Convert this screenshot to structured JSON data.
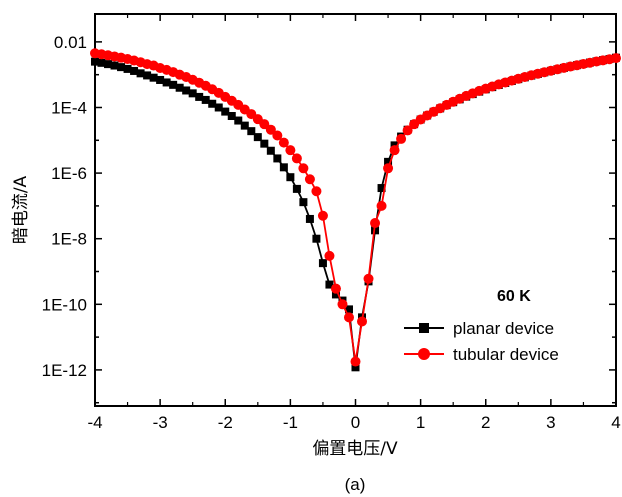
{
  "chart_data": {
    "type": "line",
    "xlabel": "偏置电压/V",
    "ylabel": "暗电流/A",
    "caption": "(a)",
    "annotation": "60 K",
    "xlim": [
      -4,
      4
    ],
    "ylim_log10": [
      -13.1,
      -1.15
    ],
    "y_scale": "log",
    "grid": false,
    "legend_position": "bottom-right",
    "x_ticks": [
      -4,
      -3,
      -2,
      -1,
      0,
      1,
      2,
      3,
      4
    ],
    "y_ticks": [
      {
        "value": 0.01,
        "label": "0.01"
      },
      {
        "value": 0.0001,
        "label": "1E-4"
      },
      {
        "value": 1e-06,
        "label": "1E-6"
      },
      {
        "value": 1e-08,
        "label": "1E-8"
      },
      {
        "value": 1e-10,
        "label": "1E-10"
      },
      {
        "value": 1e-12,
        "label": "1E-12"
      }
    ],
    "series": [
      {
        "name": "planar device",
        "color": "#000000",
        "marker": "square",
        "x": [
          -4.0,
          -3.9,
          -3.8,
          -3.7,
          -3.6,
          -3.5,
          -3.4,
          -3.3,
          -3.2,
          -3.1,
          -3.0,
          -2.9,
          -2.8,
          -2.7,
          -2.6,
          -2.5,
          -2.4,
          -2.3,
          -2.2,
          -2.1,
          -2.0,
          -1.9,
          -1.8,
          -1.7,
          -1.6,
          -1.5,
          -1.4,
          -1.3,
          -1.2,
          -1.1,
          -1.0,
          -0.9,
          -0.8,
          -0.7,
          -0.6,
          -0.5,
          -0.4,
          -0.3,
          -0.2,
          -0.1,
          0.0,
          0.1,
          0.2,
          0.3,
          0.4,
          0.5,
          0.6,
          0.7,
          0.8,
          0.9,
          1.0,
          1.1,
          1.2,
          1.3,
          1.4,
          1.5,
          1.6,
          1.7,
          1.8,
          1.9,
          2.0,
          2.1,
          2.2,
          2.3,
          2.4,
          2.5,
          2.6,
          2.7,
          2.8,
          2.9,
          3.0,
          3.1,
          3.2,
          3.3,
          3.4,
          3.5,
          3.6,
          3.7,
          3.8,
          3.9,
          4.0
        ],
        "y": [
          0.0025,
          0.0023,
          0.0021,
          0.0019,
          0.0017,
          0.0015,
          0.0013,
          0.0011,
          0.00095,
          0.00081,
          0.00069,
          0.00058,
          0.00049,
          0.0004,
          0.00033,
          0.00027,
          0.00021,
          0.00017,
          0.00013,
          0.0001,
          7.5e-05,
          5.5e-05,
          4e-05,
          2.8e-05,
          1.9e-05,
          1.25e-05,
          7.9e-06,
          4.8e-06,
          2.8e-06,
          1.5e-06,
          7.5e-07,
          3.3e-07,
          1.3e-07,
          4e-08,
          1e-08,
          1.8e-09,
          4e-10,
          2e-10,
          1.3e-10,
          7e-11,
          1.2e-12,
          4e-11,
          5e-10,
          1.8e-08,
          3.5e-07,
          2.2e-06,
          7e-06,
          1.3e-05,
          2.1e-05,
          3.1e-05,
          4.3e-05,
          5.7e-05,
          7.4e-05,
          9.4e-05,
          0.000118,
          0.000145,
          0.000177,
          0.000214,
          0.000256,
          0.000304,
          0.000358,
          0.000418,
          0.000486,
          0.00056,
          0.000642,
          0.000732,
          0.00083,
          0.00094,
          0.00105,
          0.00118,
          0.00131,
          0.00146,
          0.00161,
          0.00178,
          0.00195,
          0.00214,
          0.00234,
          0.00255,
          0.00277,
          0.003,
          0.0033
        ]
      },
      {
        "name": "tubular device",
        "color": "#ff0000",
        "marker": "circle",
        "x": [
          -4.0,
          -3.9,
          -3.8,
          -3.7,
          -3.6,
          -3.5,
          -3.4,
          -3.3,
          -3.2,
          -3.1,
          -3.0,
          -2.9,
          -2.8,
          -2.7,
          -2.6,
          -2.5,
          -2.4,
          -2.3,
          -2.2,
          -2.1,
          -2.0,
          -1.9,
          -1.8,
          -1.7,
          -1.6,
          -1.5,
          -1.4,
          -1.3,
          -1.2,
          -1.1,
          -1.0,
          -0.9,
          -0.8,
          -0.7,
          -0.6,
          -0.5,
          -0.4,
          -0.3,
          -0.2,
          -0.1,
          0.0,
          0.1,
          0.2,
          0.3,
          0.4,
          0.5,
          0.6,
          0.7,
          0.8,
          0.9,
          1.0,
          1.1,
          1.2,
          1.3,
          1.4,
          1.5,
          1.6,
          1.7,
          1.8,
          1.9,
          2.0,
          2.1,
          2.2,
          2.3,
          2.4,
          2.5,
          2.6,
          2.7,
          2.8,
          2.9,
          3.0,
          3.1,
          3.2,
          3.3,
          3.4,
          3.5,
          3.6,
          3.7,
          3.8,
          3.9,
          4.0
        ],
        "y": [
          0.0045,
          0.0042,
          0.0039,
          0.0036,
          0.0033,
          0.003,
          0.0027,
          0.0024,
          0.0021,
          0.0019,
          0.0016,
          0.0014,
          0.0012,
          0.001,
          0.00085,
          0.0007,
          0.00057,
          0.00046,
          0.00036,
          0.00028,
          0.00021,
          0.00016,
          0.00012,
          8.7e-05,
          6.3e-05,
          4.4e-05,
          3.1e-05,
          2.1e-05,
          1.4e-05,
          8.5e-06,
          5e-06,
          2.8e-06,
          1.4e-06,
          6.5e-07,
          2.8e-07,
          5e-08,
          3e-09,
          3e-10,
          1e-10,
          4e-11,
          1.8e-12,
          3e-11,
          6e-10,
          3e-08,
          1e-07,
          1.4e-06,
          5e-06,
          1.1e-05,
          2e-05,
          3.1e-05,
          4.3e-05,
          5.7e-05,
          7.4e-05,
          9.5e-05,
          0.00012,
          0.00015,
          0.000185,
          0.000225,
          0.00027,
          0.00032,
          0.000375,
          0.000437,
          0.000505,
          0.00058,
          0.00066,
          0.00075,
          0.00085,
          0.00096,
          0.00107,
          0.00119,
          0.00132,
          0.00146,
          0.00161,
          0.00177,
          0.00194,
          0.00212,
          0.00231,
          0.00252,
          0.00273,
          0.00296,
          0.0032
        ]
      }
    ]
  }
}
